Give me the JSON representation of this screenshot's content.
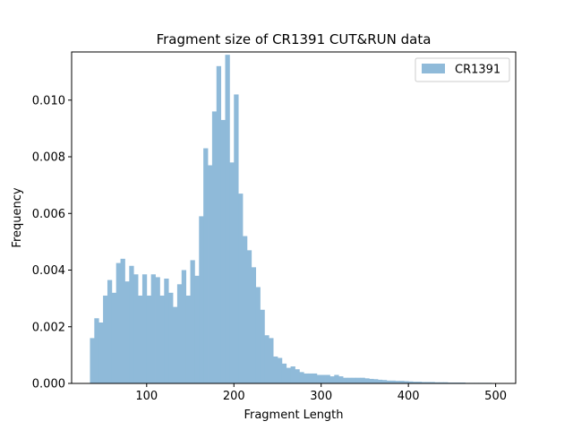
{
  "chart_data": {
    "type": "bar",
    "title": "Fragment size of CR1391 CUT&RUN data",
    "xlabel": "Fragment Length",
    "ylabel": "Frequency",
    "xlim": [
      14,
      523
    ],
    "ylim": [
      0,
      0.0117
    ],
    "xticks": [
      100,
      200,
      300,
      400,
      500
    ],
    "xtick_labels": [
      "100",
      "200",
      "300",
      "400",
      "500"
    ],
    "yticks": [
      0,
      0.002,
      0.004,
      0.006,
      0.008,
      0.01
    ],
    "ytick_labels": [
      "0.000",
      "0.002",
      "0.004",
      "0.006",
      "0.008",
      "0.010"
    ],
    "grid": false,
    "legend": {
      "position": "top-right",
      "entries": [
        "CR1391"
      ]
    },
    "series": [
      {
        "name": "CR1391",
        "color": "#8fbad9",
        "bin_edges": [
          35,
          40,
          45,
          50,
          55,
          60,
          65,
          70,
          75,
          80,
          85,
          90,
          95,
          100,
          105,
          110,
          115,
          120,
          125,
          130,
          135,
          140,
          145,
          150,
          155,
          160,
          165,
          170,
          175,
          180,
          185,
          190,
          195,
          200,
          205,
          210,
          215,
          220,
          225,
          230,
          235,
          240,
          245,
          250,
          255,
          260,
          265,
          270,
          275,
          280,
          285,
          290,
          295,
          300,
          305,
          310,
          315,
          320,
          325,
          330,
          335,
          340,
          345,
          350,
          355,
          360,
          365,
          370,
          375,
          380,
          385,
          390,
          395,
          400,
          405,
          410,
          415,
          420,
          425,
          430,
          435,
          440,
          445,
          450,
          455,
          460,
          465,
          470,
          475,
          480,
          485,
          490,
          495,
          500
        ],
        "values": [
          0.0016,
          0.0023,
          0.00215,
          0.0031,
          0.00365,
          0.0032,
          0.00425,
          0.0044,
          0.0036,
          0.00415,
          0.00385,
          0.0031,
          0.00385,
          0.0031,
          0.00385,
          0.00375,
          0.0031,
          0.0037,
          0.0032,
          0.0027,
          0.0035,
          0.004,
          0.0031,
          0.00435,
          0.0038,
          0.0059,
          0.0083,
          0.0077,
          0.0096,
          0.0112,
          0.0093,
          0.0116,
          0.0078,
          0.0102,
          0.0067,
          0.0052,
          0.0047,
          0.0041,
          0.0034,
          0.0026,
          0.0017,
          0.0016,
          0.00095,
          0.0009,
          0.0007,
          0.00055,
          0.0006,
          0.0005,
          0.0004,
          0.00035,
          0.00035,
          0.00035,
          0.0003,
          0.0003,
          0.0003,
          0.00025,
          0.0003,
          0.00025,
          0.0002,
          0.0002,
          0.0002,
          0.0002,
          0.0002,
          0.00018,
          0.00016,
          0.00015,
          0.00013,
          0.00012,
          0.0001,
          0.0001,
          9e-05,
          9e-05,
          8e-05,
          7e-05,
          6e-05,
          6e-05,
          5e-05,
          5e-05,
          5e-05,
          4e-05,
          4e-05,
          4e-05,
          3e-05,
          3e-05,
          3e-05,
          3e-05,
          2e-05,
          2e-05,
          2e-05,
          2e-05,
          2e-05,
          2e-05,
          1e-05
        ]
      }
    ]
  }
}
